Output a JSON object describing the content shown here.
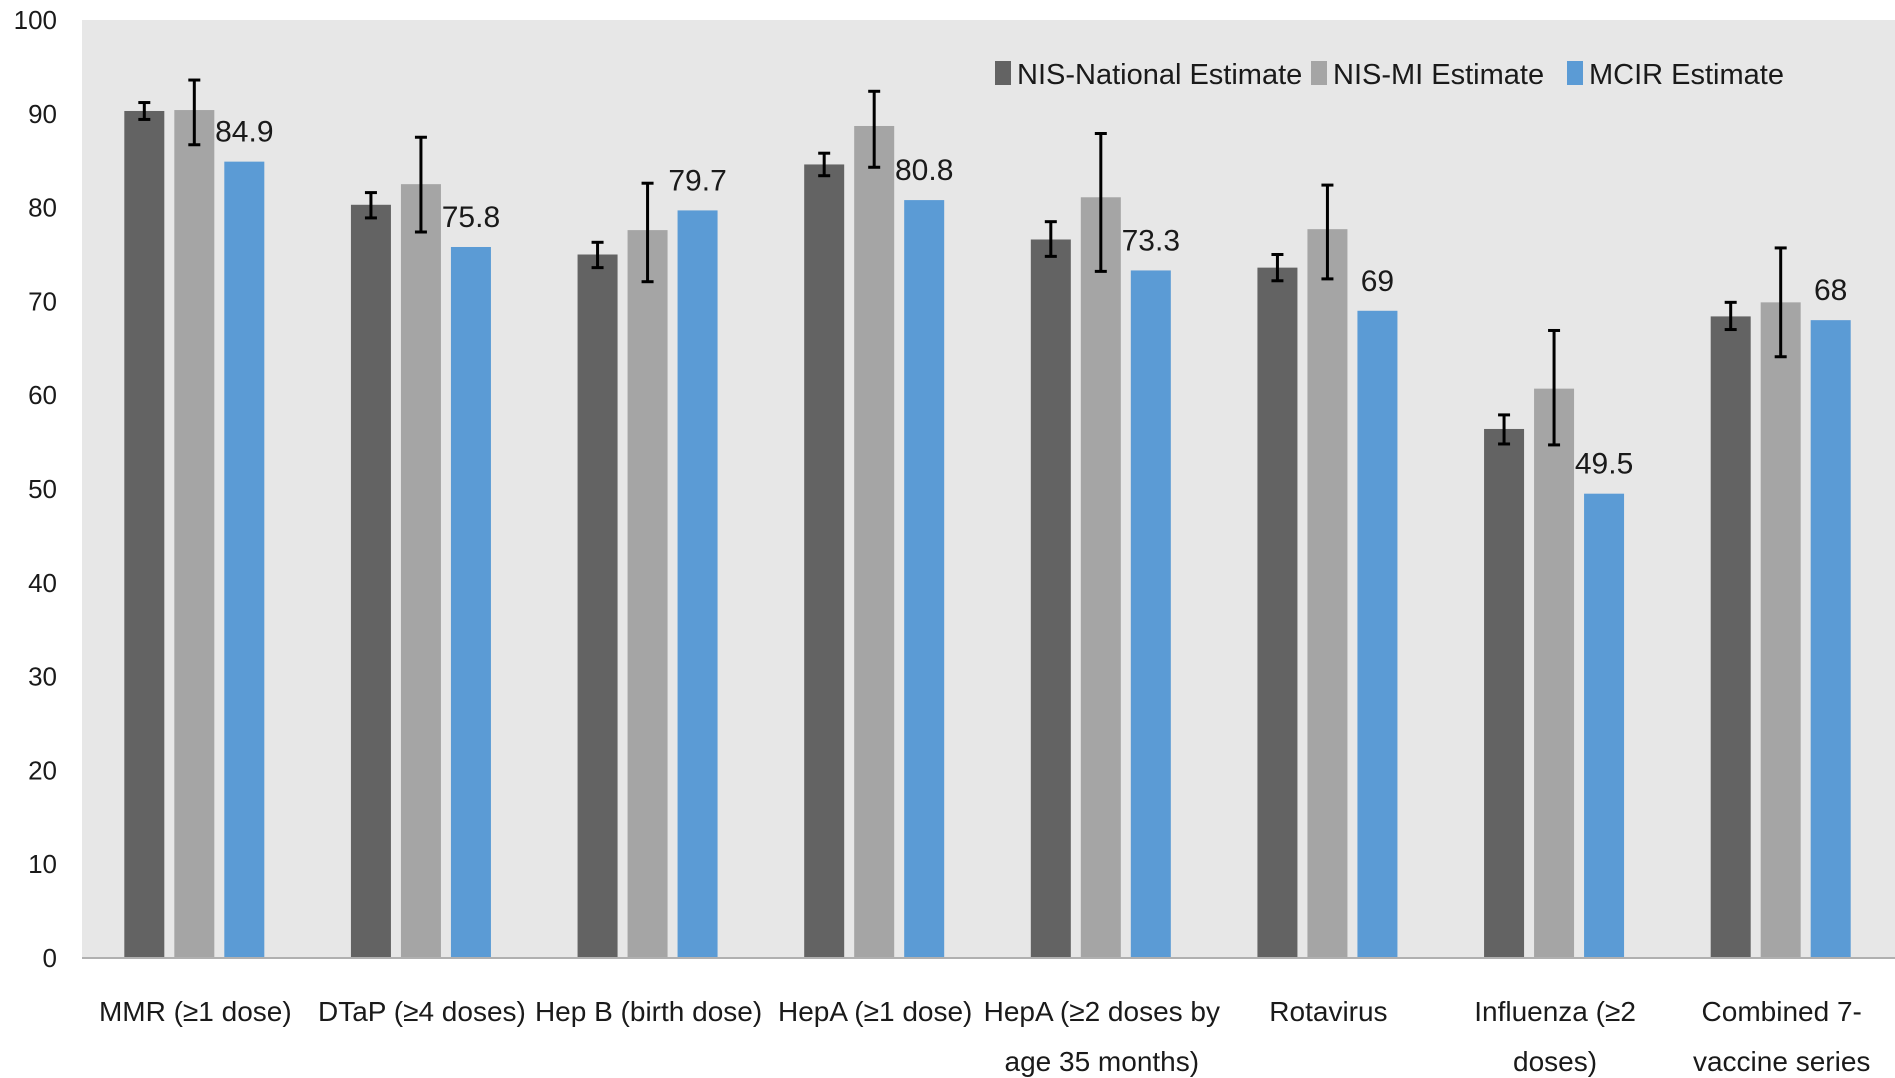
{
  "chart_data": {
    "type": "bar",
    "title": "",
    "xlabel": "",
    "ylabel": "",
    "ylim": [
      0,
      100
    ],
    "yticks": [
      0,
      10,
      20,
      30,
      40,
      50,
      60,
      70,
      80,
      90,
      100
    ],
    "grid": false,
    "legend_position": "top-right",
    "categories": [
      "MMR (≥1 dose)",
      "DTaP (≥4 doses)",
      "Hep B (birth dose)",
      "HepA (≥1 dose)",
      "HepA (≥2 doses by age 35 months)",
      "Rotavirus",
      "Influenza (≥2 doses)",
      "Combined 7-vaccine series"
    ],
    "category_label_lines": [
      [
        "MMR (≥1 dose)"
      ],
      [
        "DTaP (≥4 doses)"
      ],
      [
        "Hep B (birth dose)"
      ],
      [
        "HepA (≥1 dose)"
      ],
      [
        "HepA (≥2 doses by",
        "age 35 months)"
      ],
      [
        "Rotavirus"
      ],
      [
        "Influenza (≥2",
        "doses)"
      ],
      [
        "Combined 7-",
        "vaccine series"
      ]
    ],
    "series": [
      {
        "name": "NIS-National Estimate",
        "color": "#636363",
        "values": [
          90.3,
          80.3,
          75.0,
          84.6,
          76.6,
          73.6,
          56.4,
          68.4
        ],
        "error_low": [
          89.4,
          78.9,
          73.6,
          83.4,
          74.8,
          72.2,
          54.8,
          67.0
        ],
        "error_high": [
          91.2,
          81.6,
          76.3,
          85.8,
          78.5,
          75.0,
          57.9,
          69.9
        ]
      },
      {
        "name": "NIS-MI Estimate",
        "color": "#a5a5a5",
        "values": [
          90.4,
          82.5,
          77.6,
          88.7,
          81.1,
          77.7,
          60.7,
          69.9
        ],
        "error_low": [
          86.7,
          77.4,
          72.1,
          84.3,
          73.2,
          72.4,
          54.7,
          64.1
        ],
        "error_high": [
          93.6,
          87.5,
          82.6,
          92.4,
          87.9,
          82.4,
          66.9,
          75.7
        ]
      },
      {
        "name": "MCIR Estimate",
        "color": "#5b9bd5",
        "values": [
          84.9,
          75.8,
          79.7,
          80.8,
          73.3,
          69,
          49.5,
          68
        ],
        "data_labels": [
          "84.9",
          "75.8",
          "79.7",
          "80.8",
          "73.3",
          "69",
          "49.5",
          "68"
        ]
      }
    ],
    "plot_background": "#e7e7e7"
  }
}
